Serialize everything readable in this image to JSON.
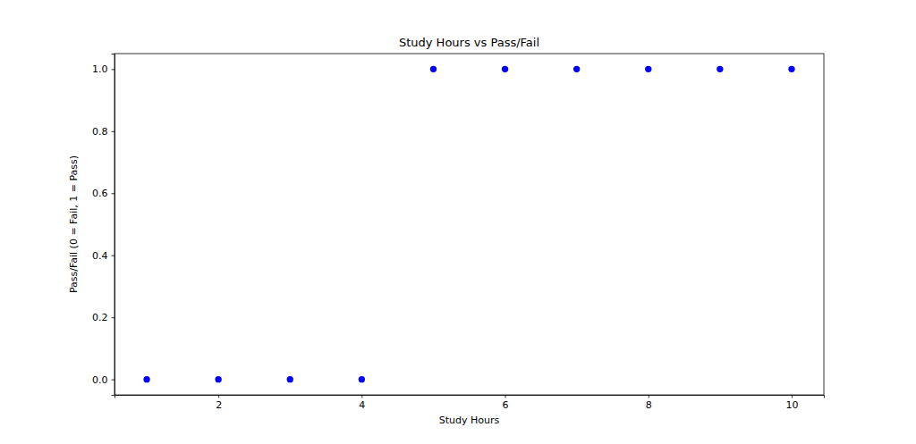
{
  "chart_data": {
    "type": "scatter",
    "title": "Study Hours vs Pass/Fail",
    "x_label": "Study Hours",
    "y_label": "Pass/Fail (0 = Fail, 1 = Pass)",
    "x": [
      1,
      2,
      3,
      4,
      5,
      6,
      7,
      8,
      9,
      10
    ],
    "values": [
      0,
      0,
      0,
      0,
      1,
      1,
      1,
      1,
      1,
      1
    ],
    "color": "#0000ff",
    "marker": "circle",
    "xlim": [
      0.55,
      10.45
    ],
    "xticks": [
      2,
      4,
      6,
      8,
      10
    ],
    "ylim": [
      -0.05,
      1.05
    ],
    "yticks": [
      {
        "value": 0,
        "label": "0.0"
      },
      {
        "value": 0.2,
        "label": "0.2"
      },
      {
        "value": 0.4,
        "label": "0.4"
      },
      {
        "value": 0.6,
        "label": "0.6"
      },
      {
        "value": 0.8,
        "label": "0.8"
      },
      {
        "value": 1.0,
        "label": "1.0"
      }
    ],
    "grid": false
  }
}
